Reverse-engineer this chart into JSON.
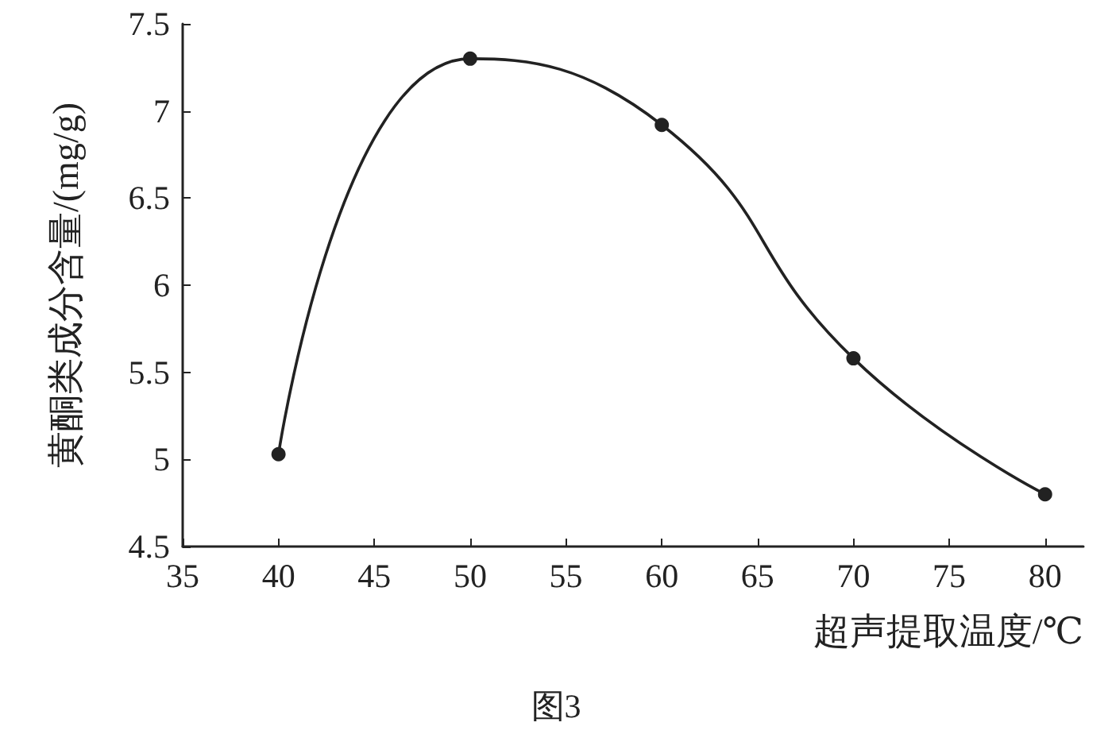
{
  "chart_data": {
    "type": "line",
    "xlabel": "超声提取温度/℃",
    "ylabel": "黄酮类成分含量/(mg/g)",
    "x": [
      40,
      50,
      60,
      70,
      80
    ],
    "series": [
      {
        "color": "#222222",
        "values": [
          5.03,
          7.3,
          6.92,
          5.58,
          4.8
        ]
      }
    ],
    "xlim": [
      35,
      82
    ],
    "xticks": [
      35,
      40,
      45,
      50,
      55,
      60,
      65,
      70,
      75,
      80
    ],
    "ylim": [
      4.5,
      7.5
    ],
    "yticks": [
      4.5,
      5,
      5.5,
      6,
      6.5,
      7,
      7.5
    ],
    "grid": false,
    "marker": "circle",
    "line_style": "solid",
    "annotations": [
      "图3"
    ]
  }
}
